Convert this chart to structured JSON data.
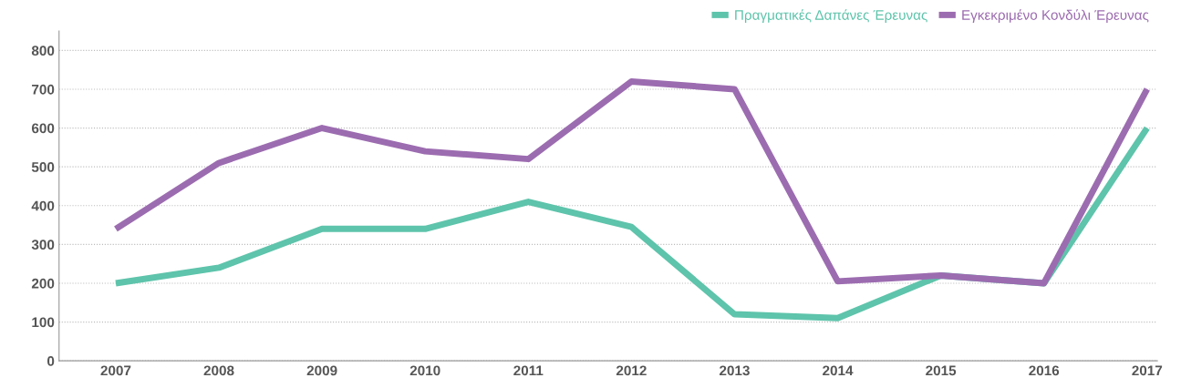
{
  "chart_data": {
    "type": "line",
    "categories": [
      "2007",
      "2008",
      "2009",
      "2010",
      "2011",
      "2012",
      "2013",
      "2014",
      "2015",
      "2016",
      "2017"
    ],
    "series": [
      {
        "name": "Πραγματικές Δαπάνες Έρευνας",
        "color": "#5ec4ab",
        "values": [
          200,
          240,
          340,
          340,
          410,
          345,
          120,
          110,
          220,
          200,
          600
        ]
      },
      {
        "name": "Εγκεκριμένο Κονδύλι Έρευνας",
        "color": "#9c6cb0",
        "values": [
          340,
          510,
          600,
          540,
          520,
          720,
          700,
          205,
          220,
          200,
          700
        ]
      }
    ],
    "ylim": [
      0,
      850
    ],
    "yticks": [
      0,
      100,
      200,
      300,
      400,
      500,
      600,
      700,
      800
    ],
    "grid": "y",
    "legend": "top right",
    "marker": "none",
    "line_style": "solid"
  }
}
